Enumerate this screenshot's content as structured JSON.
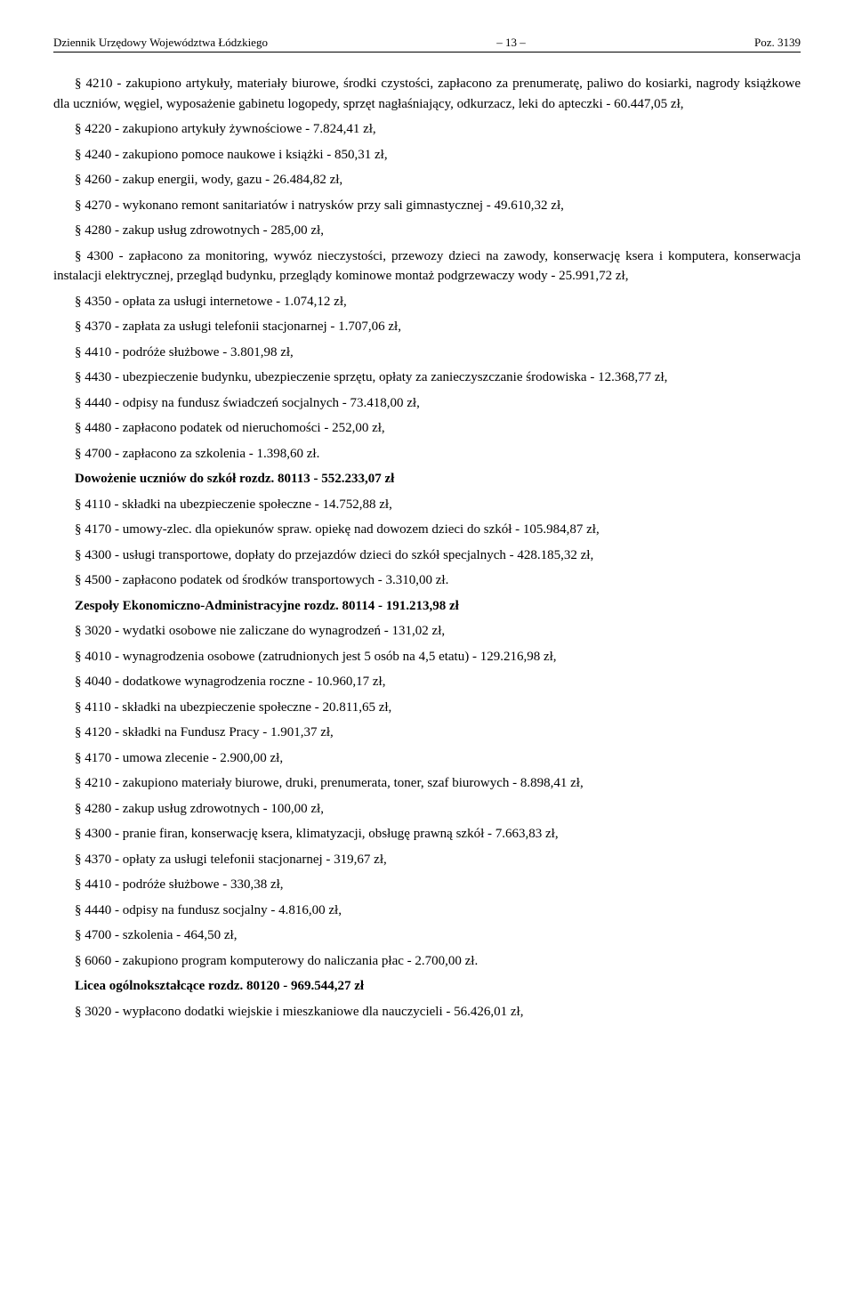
{
  "header": {
    "left": "Dziennik Urzędowy Województwa Łódzkiego",
    "center": "– 13 –",
    "right": "Poz. 3139"
  },
  "intro": "§ 4210 - zakupiono artykuły, materiały biurowe, środki czystości, zapłacono za prenumeratę, paliwo do kosiarki, nagrody książkowe dla uczniów, węgiel, wyposażenie gabinetu logopedy, sprzęt nagłaśniający, odkurzacz, leki do apteczki - 60.447,05 zł,",
  "items1": [
    "§ 4220 - zakupiono artykuły żywnościowe - 7.824,41 zł,",
    "§ 4240 - zakupiono pomoce naukowe i książki - 850,31 zł,",
    "§ 4260 - zakup energii, wody, gazu - 26.484,82 zł,",
    "§ 4270 - wykonano remont sanitariatów i natrysków przy sali gimnastycznej - 49.610,32 zł,",
    "§ 4280 - zakup usług zdrowotnych - 285,00 zł,"
  ],
  "para1": "§ 4300 - zapłacono za monitoring, wywóz nieczystości, przewozy dzieci na zawody, konserwację ksera i komputera, konserwacja instalacji elektrycznej, przegląd budynku, przeglądy kominowe montaż podgrzewaczy wody - 25.991,72 zł,",
  "items2": [
    "§ 4350 - opłata za usługi internetowe - 1.074,12 zł,",
    "§ 4370 - zapłata za usługi telefonii stacjonarnej - 1.707,06 zł,",
    "§ 4410 - podróże służbowe - 3.801,98 zł,",
    "§ 4430 - ubezpieczenie budynku, ubezpieczenie sprzętu, opłaty za zanieczyszczanie środowiska - 12.368,77  zł,",
    "§ 4440 - odpisy na fundusz świadczeń socjalnych - 73.418,00 zł,",
    "§ 4480 - zapłacono podatek od nieruchomości - 252,00 zł,",
    "§ 4700 - zapłacono za szkolenia - 1.398,60 zł."
  ],
  "sub1": "Dowożenie uczniów do szkół rozdz. 80113 - 552.233,07 zł",
  "items3": [
    "§ 4110 - składki na ubezpieczenie społeczne - 14.752,88 zł,",
    "§ 4170 - umowy-zlec. dla opiekunów spraw. opiekę nad dowozem dzieci do szkół - 105.984,87 zł,",
    "§ 4300 - usługi transportowe, dopłaty do przejazdów dzieci do szkół specjalnych - 428.185,32 zł,",
    "§ 4500 - zapłacono podatek od środków transportowych - 3.310,00 zł."
  ],
  "sub2": "Zespoły Ekonomiczno-Administracyjne rozdz. 80114 - 191.213,98 zł",
  "items4": [
    "§ 3020 - wydatki osobowe nie zaliczane do wynagrodzeń - 131,02 zł,",
    "§ 4010 - wynagrodzenia osobowe (zatrudnionych jest 5 osób na 4,5 etatu) - 129.216,98 zł,",
    "§ 4040 - dodatkowe wynagrodzenia roczne - 10.960,17 zł,",
    "§ 4110 - składki na ubezpieczenie społeczne - 20.811,65 zł,",
    "§ 4120 - składki na Fundusz Pracy - 1.901,37 zł,",
    "§ 4170 - umowa zlecenie - 2.900,00 zł,",
    "§ 4210 - zakupiono materiały biurowe, druki, prenumerata, toner, szaf biurowych - 8.898,41 zł,",
    "§ 4280 - zakup usług zdrowotnych - 100,00 zł,",
    "§ 4300 - pranie firan, konserwację ksera, klimatyzacji, obsługę prawną szkół - 7.663,83 zł,",
    "§ 4370 - opłaty za usługi telefonii stacjonarnej - 319,67 zł,",
    "§ 4410 - podróże służbowe - 330,38 zł,",
    "§ 4440 - odpisy na fundusz socjalny - 4.816,00 zł,",
    "§ 4700 - szkolenia - 464,50 zł,",
    "§ 6060 - zakupiono program komputerowy do naliczania płac - 2.700,00 zł."
  ],
  "sub3": "Licea ogólnokształcące rozdz. 80120 - 969.544,27 zł",
  "items5": [
    "§ 3020 - wypłacono dodatki wiejskie i mieszkaniowe dla nauczycieli - 56.426,01 zł,"
  ]
}
